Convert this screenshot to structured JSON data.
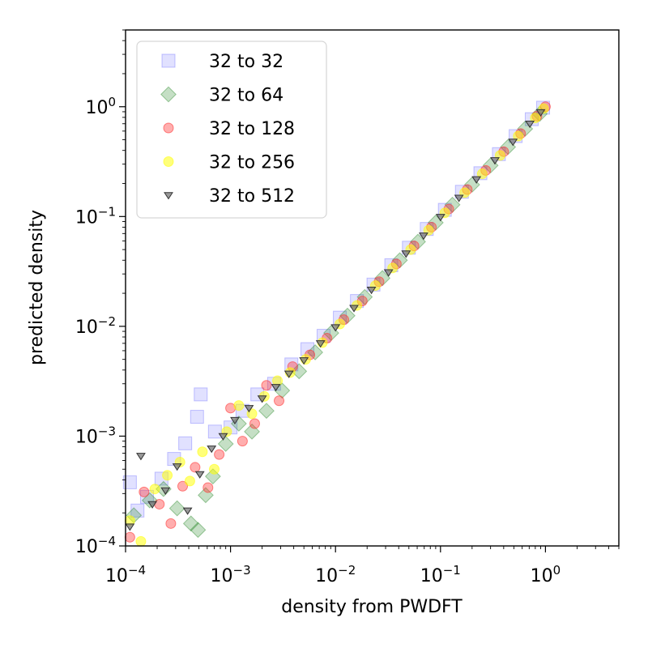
{
  "chart_data": {
    "type": "scatter",
    "title": "",
    "xlabel": "density from PWDFT",
    "ylabel": "predicted density",
    "xscale": "log",
    "yscale": "log",
    "xlim": [
      0.0001,
      5
    ],
    "ylim": [
      0.0001,
      5
    ],
    "x_ticks": [
      {
        "base": "10",
        "exp": "−4"
      },
      {
        "base": "10",
        "exp": "−3"
      },
      {
        "base": "10",
        "exp": "−2"
      },
      {
        "base": "10",
        "exp": "−1"
      },
      {
        "base": "10",
        "exp": "0"
      }
    ],
    "y_ticks": [
      {
        "base": "10",
        "exp": "−4"
      },
      {
        "base": "10",
        "exp": "−3"
      },
      {
        "base": "10",
        "exp": "−2"
      },
      {
        "base": "10",
        "exp": "−1"
      },
      {
        "base": "10",
        "exp": "0"
      }
    ],
    "grid": false,
    "legend_position": "top-left",
    "series": [
      {
        "name": "32 to 32",
        "marker": "square",
        "color": "#5a5aff",
        "points": [
          [
            0.00011,
            0.00038
          ],
          [
            0.00013,
            0.00021
          ],
          [
            0.00016,
            0.00028
          ],
          [
            0.00022,
            0.00041
          ],
          [
            0.00029,
            0.00062
          ],
          [
            0.00037,
            0.00086
          ],
          [
            0.00048,
            0.0015
          ],
          [
            0.00052,
            0.0024
          ],
          [
            0.00071,
            0.0011
          ],
          [
            0.001,
            0.0012
          ],
          [
            0.0013,
            0.0017
          ],
          [
            0.0018,
            0.0024
          ],
          [
            0.0026,
            0.003
          ],
          [
            0.0038,
            0.0045
          ],
          [
            0.0054,
            0.0062
          ],
          [
            0.0077,
            0.0082
          ],
          [
            0.011,
            0.012
          ],
          [
            0.016,
            0.017
          ],
          [
            0.023,
            0.024
          ],
          [
            0.034,
            0.036
          ],
          [
            0.05,
            0.052
          ],
          [
            0.074,
            0.077
          ],
          [
            0.11,
            0.115
          ],
          [
            0.16,
            0.168
          ],
          [
            0.24,
            0.248
          ],
          [
            0.36,
            0.37
          ],
          [
            0.52,
            0.54
          ],
          [
            0.74,
            0.77
          ],
          [
            0.95,
            0.98
          ]
        ]
      },
      {
        "name": "32 to 64",
        "marker": "diamond",
        "color": "#2e8b2e",
        "points": [
          [
            0.00012,
            0.00019
          ],
          [
            0.00017,
            0.00026
          ],
          [
            0.00023,
            0.00033
          ],
          [
            0.00031,
            0.00022
          ],
          [
            0.00042,
            0.00016
          ],
          [
            0.00049,
            0.00014
          ],
          [
            0.00058,
            0.00029
          ],
          [
            0.00068,
            0.00043
          ],
          [
            0.0009,
            0.00085
          ],
          [
            0.0012,
            0.0013
          ],
          [
            0.0016,
            0.0011
          ],
          [
            0.0022,
            0.0017
          ],
          [
            0.0031,
            0.0026
          ],
          [
            0.0045,
            0.0039
          ],
          [
            0.0064,
            0.0058
          ],
          [
            0.0091,
            0.0087
          ],
          [
            0.013,
            0.0125
          ],
          [
            0.019,
            0.0185
          ],
          [
            0.028,
            0.0275
          ],
          [
            0.041,
            0.04
          ],
          [
            0.061,
            0.059
          ],
          [
            0.09,
            0.088
          ],
          [
            0.13,
            0.128
          ],
          [
            0.2,
            0.195
          ],
          [
            0.3,
            0.292
          ],
          [
            0.44,
            0.43
          ],
          [
            0.64,
            0.63
          ],
          [
            0.88,
            0.86
          ]
        ]
      },
      {
        "name": "32 to 128",
        "marker": "circle",
        "color": "#ff2a2a",
        "points": [
          [
            0.00011,
            0.00012
          ],
          [
            0.00015,
            0.00031
          ],
          [
            0.00021,
            0.00024
          ],
          [
            0.00027,
            0.00016
          ],
          [
            0.00035,
            0.00035
          ],
          [
            0.00046,
            0.00052
          ],
          [
            0.00061,
            0.00034
          ],
          [
            0.00078,
            0.00068
          ],
          [
            0.001,
            0.0018
          ],
          [
            0.0013,
            0.0009
          ],
          [
            0.0017,
            0.0013
          ],
          [
            0.0022,
            0.0029
          ],
          [
            0.0029,
            0.0021
          ],
          [
            0.0039,
            0.0043
          ],
          [
            0.0057,
            0.0055
          ],
          [
            0.0083,
            0.0078
          ],
          [
            0.012,
            0.0115
          ],
          [
            0.018,
            0.017
          ],
          [
            0.026,
            0.0255
          ],
          [
            0.038,
            0.037
          ],
          [
            0.056,
            0.054
          ],
          [
            0.082,
            0.08
          ],
          [
            0.12,
            0.117
          ],
          [
            0.18,
            0.176
          ],
          [
            0.27,
            0.263
          ],
          [
            0.4,
            0.39
          ],
          [
            0.58,
            0.57
          ],
          [
            0.83,
            0.82
          ],
          [
            1.0,
            1.0
          ]
        ]
      },
      {
        "name": "32 to 256",
        "marker": "circle",
        "color": "#ffff00",
        "points": [
          [
            0.00011,
            0.00017
          ],
          [
            0.00014,
            0.00011
          ],
          [
            0.00019,
            0.00033
          ],
          [
            0.00025,
            0.00044
          ],
          [
            0.00033,
            0.00058
          ],
          [
            0.00041,
            0.00039
          ],
          [
            0.00054,
            0.00072
          ],
          [
            0.0007,
            0.0005
          ],
          [
            0.00092,
            0.0011
          ],
          [
            0.0012,
            0.0019
          ],
          [
            0.0016,
            0.0016
          ],
          [
            0.0021,
            0.0023
          ],
          [
            0.0028,
            0.0032
          ],
          [
            0.0037,
            0.0038
          ],
          [
            0.0052,
            0.005
          ],
          [
            0.0075,
            0.0071
          ],
          [
            0.011,
            0.0105
          ],
          [
            0.016,
            0.0155
          ],
          [
            0.024,
            0.0235
          ],
          [
            0.035,
            0.034
          ],
          [
            0.052,
            0.05
          ],
          [
            0.077,
            0.075
          ],
          [
            0.11,
            0.108
          ],
          [
            0.17,
            0.165
          ],
          [
            0.25,
            0.245
          ],
          [
            0.37,
            0.36
          ],
          [
            0.55,
            0.54
          ],
          [
            0.8,
            0.79
          ],
          [
            0.96,
            0.96
          ]
        ]
      },
      {
        "name": "32 to 512",
        "marker": "triangle-down",
        "color": "#333333",
        "points": [
          [
            0.00011,
            0.00015
          ],
          [
            0.00014,
            0.00066
          ],
          [
            0.00018,
            0.00024
          ],
          [
            0.00024,
            0.00032
          ],
          [
            0.00031,
            0.00053
          ],
          [
            0.00039,
            0.00021
          ],
          [
            0.00051,
            0.00045
          ],
          [
            0.00066,
            0.00077
          ],
          [
            0.00085,
            0.001
          ],
          [
            0.0011,
            0.0014
          ],
          [
            0.0015,
            0.0018
          ],
          [
            0.002,
            0.0022
          ],
          [
            0.0027,
            0.0028
          ],
          [
            0.0036,
            0.0037
          ],
          [
            0.005,
            0.0049
          ],
          [
            0.0072,
            0.007
          ],
          [
            0.01,
            0.0098
          ],
          [
            0.015,
            0.0147
          ],
          [
            0.022,
            0.0215
          ],
          [
            0.032,
            0.031
          ],
          [
            0.047,
            0.046
          ],
          [
            0.069,
            0.067
          ],
          [
            0.1,
            0.099
          ],
          [
            0.15,
            0.148
          ],
          [
            0.22,
            0.218
          ],
          [
            0.33,
            0.325
          ],
          [
            0.49,
            0.48
          ],
          [
            0.71,
            0.7
          ],
          [
            0.9,
            0.89
          ]
        ]
      }
    ]
  }
}
